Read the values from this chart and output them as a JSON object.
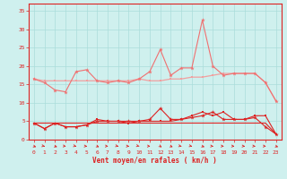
{
  "x": [
    0,
    1,
    2,
    3,
    4,
    5,
    6,
    7,
    8,
    9,
    10,
    11,
    12,
    13,
    14,
    15,
    16,
    17,
    18,
    19,
    20,
    21,
    22,
    23
  ],
  "line1": [
    16.5,
    16.0,
    16.0,
    16.0,
    16.0,
    16.0,
    16.0,
    16.0,
    16.0,
    16.0,
    16.5,
    16.0,
    16.0,
    16.5,
    16.5,
    17.0,
    17.0,
    17.5,
    18.0,
    18.0,
    18.0,
    18.0,
    15.5,
    10.5
  ],
  "line2": [
    16.5,
    15.5,
    13.5,
    13.0,
    18.5,
    19.0,
    16.0,
    15.5,
    16.0,
    15.5,
    16.5,
    18.5,
    24.5,
    17.5,
    19.5,
    19.5,
    32.5,
    20.0,
    17.5,
    18.0,
    18.0,
    18.0,
    15.5,
    10.5
  ],
  "line3": [
    4.5,
    3.0,
    4.5,
    3.5,
    3.5,
    4.0,
    5.5,
    5.0,
    5.0,
    4.5,
    5.0,
    5.0,
    5.0,
    5.0,
    5.5,
    6.5,
    7.5,
    6.5,
    7.5,
    5.5,
    5.5,
    6.5,
    6.5,
    1.5
  ],
  "line4": [
    4.5,
    3.0,
    4.5,
    3.5,
    3.5,
    4.0,
    5.0,
    5.0,
    5.0,
    5.0,
    5.0,
    5.5,
    8.5,
    5.5,
    5.5,
    6.0,
    6.5,
    7.5,
    5.5,
    5.5,
    5.5,
    6.0,
    3.5,
    1.5
  ],
  "line5_flat": [
    4.5,
    4.5,
    4.5,
    4.5,
    4.5,
    4.5,
    4.5,
    4.5,
    4.5,
    4.5,
    4.5,
    4.5,
    4.5,
    4.5,
    4.5,
    4.5,
    4.5,
    4.5,
    4.5,
    4.5,
    4.5,
    4.5,
    4.5,
    1.5
  ],
  "background_color": "#cff0ee",
  "grid_color": "#aaddda",
  "line_color_light": "#f0a0a0",
  "line_color_medium": "#f07070",
  "line_color_dark": "#dd2222",
  "xlabel": "Vent moyen/en rafales ( km/h )",
  "yticks": [
    0,
    5,
    10,
    15,
    20,
    25,
    30,
    35
  ],
  "xticks": [
    0,
    1,
    2,
    3,
    4,
    5,
    6,
    7,
    8,
    9,
    10,
    11,
    12,
    13,
    14,
    15,
    16,
    17,
    18,
    19,
    20,
    21,
    22,
    23
  ],
  "ylim": [
    0,
    37
  ],
  "xlim": [
    -0.5,
    23.5
  ],
  "arrow_angles": [
    225,
    210,
    225,
    200,
    210,
    195,
    230,
    195,
    210,
    195,
    215,
    195,
    240,
    230,
    210,
    210,
    225,
    195,
    195,
    195,
    195,
    195,
    195,
    225
  ]
}
